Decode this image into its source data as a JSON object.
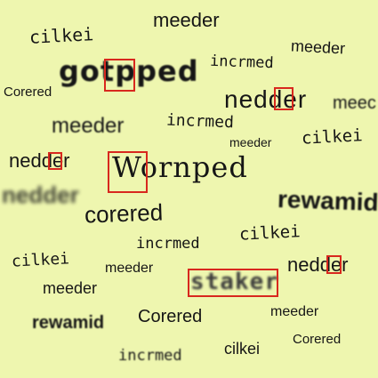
{
  "background_color": "#EEF6AF",
  "highlight_color": "#D8281E",
  "words": [
    "meeder",
    "cilkei",
    "meeder",
    "gotpped",
    "incrmed",
    "Corered",
    "nedder",
    "meec",
    "meeder",
    "incrmed",
    "meeder",
    "cilkei",
    "nedder",
    "Wornped",
    "nedder",
    "rewamid",
    "corered",
    "incrmed",
    "cilkei",
    "cilkei",
    "meeder",
    "nedder",
    "staker",
    "meeder",
    "meeder",
    "rewamid",
    "Corered",
    "meeder",
    "Corered",
    "incrmed",
    "cilkei"
  ]
}
